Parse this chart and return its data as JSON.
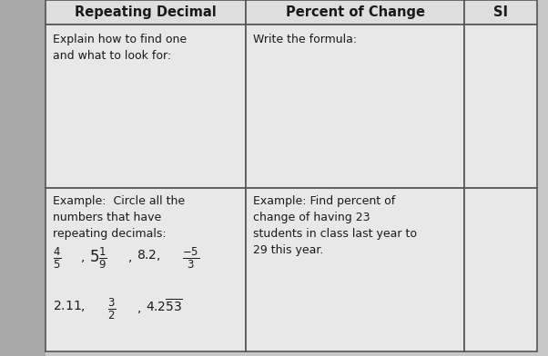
{
  "bg_color": "#c8c8c8",
  "left_strip_color": "#b0b0b0",
  "cell_bg_header": "#e8e8e8",
  "cell_bg_body": "#e0e0e0",
  "cell_bg_white": "#f0f0f0",
  "border_color": "#555555",
  "title_col1": "Repeating Decimal",
  "title_col2": "Percent of Change",
  "title_col3": "SI",
  "row1_col1_line1": "Explain how to find one",
  "row1_col1_line2": "and what to look for:",
  "row1_col2": "Write the formula:",
  "row2_col1_intro": "Example:  Circle all the\nnumbers that have\nrepeating decimals:",
  "row2_col2": "Example: Find percent of\nchange of having 23\nstudents in class last year to\n29 this year.",
  "text_color": "#1a1a1a",
  "font_size_header": 10.5,
  "font_size_body": 9.0,
  "font_size_math": 10.5,
  "lw": 1.2
}
